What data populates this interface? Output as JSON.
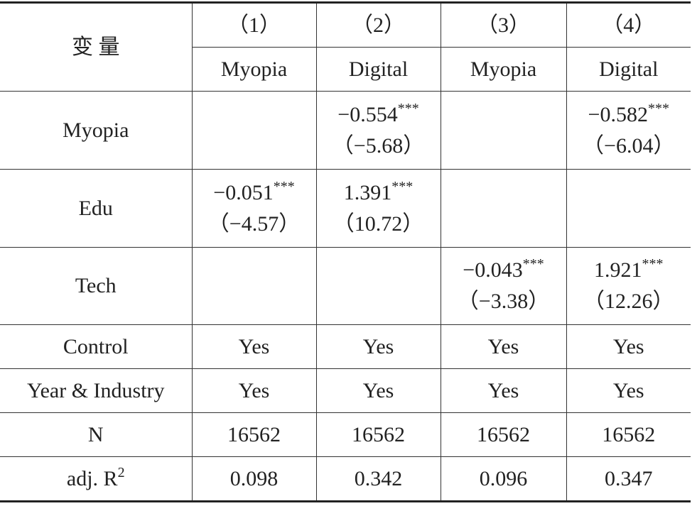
{
  "table": {
    "corner": "变 量",
    "group_headers": [
      "（1）",
      "（2）",
      "（3）",
      "（4）"
    ],
    "dep_vars": [
      "Myopia",
      "Digital",
      "Myopia",
      "Digital"
    ],
    "rows": [
      {
        "label": "Myopia",
        "cells": [
          null,
          {
            "coef": "−0.554",
            "stars": "***",
            "t": "（−5.68）"
          },
          null,
          {
            "coef": "−0.582",
            "stars": "***",
            "t": "（−6.04）"
          }
        ]
      },
      {
        "label": "Edu",
        "cells": [
          {
            "coef": "−0.051",
            "stars": "***",
            "t": "（−4.57）"
          },
          {
            "coef": "1.391",
            "stars": "***",
            "t": "（10.72）"
          },
          null,
          null
        ]
      },
      {
        "label": "Tech",
        "cells": [
          null,
          null,
          {
            "coef": "−0.043",
            "stars": "***",
            "t": "（−3.38）"
          },
          {
            "coef": "1.921",
            "stars": "***",
            "t": "（12.26）"
          }
        ]
      },
      {
        "label": "Control",
        "cells": [
          "Yes",
          "Yes",
          "Yes",
          "Yes"
        ]
      },
      {
        "label": "Year & Industry",
        "cells": [
          "Yes",
          "Yes",
          "Yes",
          "Yes"
        ]
      },
      {
        "label": "N",
        "cells": [
          "16562",
          "16562",
          "16562",
          "16562"
        ]
      },
      {
        "label": "adj. R",
        "label_sup": "2",
        "cells": [
          "0.098",
          "0.342",
          "0.096",
          "0.347"
        ]
      }
    ]
  }
}
